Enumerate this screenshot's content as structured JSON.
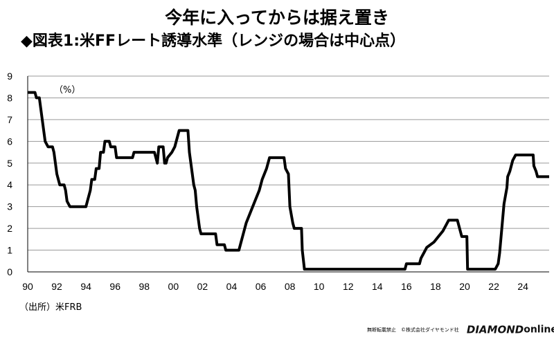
{
  "header": {
    "title": "今年に入ってからは据え置き",
    "subtitle": "◆図表1:米FFレート誘導水準（レンジの場合は中心点）"
  },
  "footer": {
    "source": "（出所）米FRB",
    "copyright": "無断転載禁止　©株式会社ダイヤモンド社",
    "brand": "DIAMOND",
    "brand_suffix": "online"
  },
  "chart_data": {
    "type": "line",
    "title": "",
    "unit_label": "（%）",
    "xlim": [
      1990,
      2025.8
    ],
    "ylim": [
      0,
      9
    ],
    "x_ticks": [
      "90",
      "92",
      "94",
      "96",
      "98",
      "00",
      "02",
      "04",
      "06",
      "08",
      "10",
      "12",
      "14",
      "16",
      "18",
      "20",
      "22",
      "24"
    ],
    "y_ticks": [
      "0",
      "1",
      "2",
      "3",
      "4",
      "5",
      "6",
      "7",
      "8",
      "9"
    ],
    "grid": true,
    "line_color": "#000000",
    "series": [
      {
        "name": "",
        "points": [
          [
            1990.0,
            8.25
          ],
          [
            1990.5,
            8.25
          ],
          [
            1990.6,
            8.0
          ],
          [
            1990.8,
            8.0
          ],
          [
            1990.9,
            7.5
          ],
          [
            1991.0,
            7.0
          ],
          [
            1991.1,
            6.5
          ],
          [
            1991.2,
            6.0
          ],
          [
            1991.4,
            5.75
          ],
          [
            1991.7,
            5.75
          ],
          [
            1991.8,
            5.5
          ],
          [
            1991.9,
            5.0
          ],
          [
            1992.0,
            4.5
          ],
          [
            1992.2,
            4.0
          ],
          [
            1992.5,
            4.0
          ],
          [
            1992.6,
            3.75
          ],
          [
            1992.7,
            3.25
          ],
          [
            1992.9,
            3.0
          ],
          [
            1994.0,
            3.0
          ],
          [
            1994.1,
            3.25
          ],
          [
            1994.3,
            3.75
          ],
          [
            1994.4,
            4.25
          ],
          [
            1994.6,
            4.25
          ],
          [
            1994.7,
            4.75
          ],
          [
            1994.9,
            4.75
          ],
          [
            1995.0,
            5.5
          ],
          [
            1995.2,
            5.5
          ],
          [
            1995.3,
            6.0
          ],
          [
            1995.6,
            6.0
          ],
          [
            1995.7,
            5.75
          ],
          [
            1996.0,
            5.75
          ],
          [
            1996.1,
            5.25
          ],
          [
            1997.2,
            5.25
          ],
          [
            1997.3,
            5.5
          ],
          [
            1998.7,
            5.5
          ],
          [
            1998.8,
            5.25
          ],
          [
            1998.9,
            5.0
          ],
          [
            1999.0,
            5.75
          ],
          [
            1999.3,
            5.75
          ],
          [
            1999.4,
            5.0
          ],
          [
            1999.5,
            5.0
          ],
          [
            1999.6,
            5.25
          ],
          [
            1999.9,
            5.5
          ],
          [
            2000.1,
            5.75
          ],
          [
            2000.2,
            6.0
          ],
          [
            2000.4,
            6.5
          ],
          [
            2001.0,
            6.5
          ],
          [
            2001.1,
            5.5
          ],
          [
            2001.2,
            5.0
          ],
          [
            2001.4,
            4.0
          ],
          [
            2001.5,
            3.75
          ],
          [
            2001.6,
            3.0
          ],
          [
            2001.8,
            2.0
          ],
          [
            2001.9,
            1.75
          ],
          [
            2002.9,
            1.75
          ],
          [
            2003.0,
            1.25
          ],
          [
            2003.5,
            1.25
          ],
          [
            2003.6,
            1.0
          ],
          [
            2004.5,
            1.0
          ],
          [
            2004.6,
            1.25
          ],
          [
            2004.8,
            1.75
          ],
          [
            2005.0,
            2.25
          ],
          [
            2005.3,
            2.75
          ],
          [
            2005.6,
            3.25
          ],
          [
            2005.9,
            3.75
          ],
          [
            2006.1,
            4.25
          ],
          [
            2006.4,
            4.75
          ],
          [
            2006.6,
            5.25
          ],
          [
            2007.6,
            5.25
          ],
          [
            2007.7,
            4.75
          ],
          [
            2007.9,
            4.5
          ],
          [
            2008.0,
            3.0
          ],
          [
            2008.2,
            2.25
          ],
          [
            2008.3,
            2.0
          ],
          [
            2008.8,
            2.0
          ],
          [
            2008.85,
            1.0
          ],
          [
            2009.0,
            0.125
          ],
          [
            2015.9,
            0.125
          ],
          [
            2016.0,
            0.375
          ],
          [
            2016.9,
            0.375
          ],
          [
            2017.0,
            0.625
          ],
          [
            2017.2,
            0.875
          ],
          [
            2017.4,
            1.125
          ],
          [
            2017.9,
            1.375
          ],
          [
            2018.2,
            1.625
          ],
          [
            2018.5,
            1.875
          ],
          [
            2018.7,
            2.125
          ],
          [
            2018.9,
            2.375
          ],
          [
            2019.5,
            2.375
          ],
          [
            2019.6,
            2.125
          ],
          [
            2019.7,
            1.875
          ],
          [
            2019.8,
            1.625
          ],
          [
            2020.15,
            1.625
          ],
          [
            2020.2,
            0.125
          ],
          [
            2022.1,
            0.125
          ],
          [
            2022.3,
            0.375
          ],
          [
            2022.4,
            0.875
          ],
          [
            2022.5,
            1.625
          ],
          [
            2022.6,
            2.375
          ],
          [
            2022.7,
            3.125
          ],
          [
            2022.9,
            3.875
          ],
          [
            2022.95,
            4.375
          ],
          [
            2023.1,
            4.625
          ],
          [
            2023.2,
            4.875
          ],
          [
            2023.3,
            5.125
          ],
          [
            2023.5,
            5.375
          ],
          [
            2024.7,
            5.375
          ],
          [
            2024.75,
            4.875
          ],
          [
            2024.9,
            4.625
          ],
          [
            2025.0,
            4.375
          ],
          [
            2025.8,
            4.375
          ]
        ]
      }
    ]
  }
}
